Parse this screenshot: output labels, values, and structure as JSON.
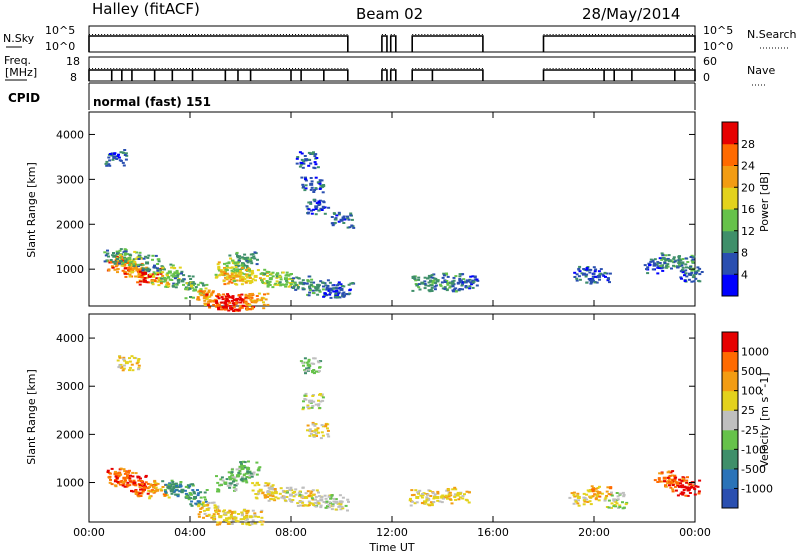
{
  "header": {
    "station": "Halley (fitACF)",
    "beam": "Beam 02",
    "date": "28/May/2014"
  },
  "status_panels": {
    "nsky_label": "N.Sky",
    "nsky_ticks": [
      "10^5",
      "10^0"
    ],
    "nsearch_label": "N.Search",
    "nsearch_ticks": [
      "10^5",
      "10^0"
    ],
    "freq_label_1": "Freq.",
    "freq_label_2": "[MHz]",
    "freq_ticks": [
      "18",
      "8"
    ],
    "nave_label": "Nave",
    "nave_ticks": [
      "60",
      "0"
    ],
    "cpid_label": "CPID",
    "cpid_value": "normal (fast) 151"
  },
  "chart_data": [
    {
      "type": "heatmap",
      "panel": "power",
      "ylabel": "Slant Range [km]",
      "yticks": [
        "1000",
        "2000",
        "3000",
        "4000"
      ],
      "ylim": [
        180,
        4500
      ],
      "xlim": [
        0,
        24
      ],
      "colorbar": {
        "label": "Power [dB]",
        "ticks": [
          "4",
          "8",
          "12",
          "16",
          "20",
          "24",
          "28"
        ],
        "colors": [
          "#0000ff",
          "#2a4fb0",
          "#3f8f6a",
          "#66c24a",
          "#e3d21c",
          "#f39c12",
          "#ff6a00",
          "#e60000"
        ]
      },
      "observations": [
        {
          "time": 1.1,
          "range": 1150,
          "level": 6
        },
        {
          "time": 1.4,
          "range": 1100,
          "level": 5
        },
        {
          "time": 1.7,
          "range": 1000,
          "level": 6
        },
        {
          "time": 2.0,
          "range": 900,
          "level": 5
        },
        {
          "time": 2.4,
          "range": 850,
          "level": 7
        },
        {
          "time": 2.8,
          "range": 800,
          "level": 4
        },
        {
          "time": 1.0,
          "range": 1300,
          "level": 2
        },
        {
          "time": 1.6,
          "range": 1250,
          "level": 3
        },
        {
          "time": 2.3,
          "range": 1150,
          "level": 2
        },
        {
          "time": 3.2,
          "range": 950,
          "level": 3
        },
        {
          "time": 3.7,
          "range": 750,
          "level": 2
        },
        {
          "time": 4.2,
          "range": 550,
          "level": 3
        },
        {
          "time": 4.6,
          "range": 400,
          "level": 5
        },
        {
          "time": 5.0,
          "range": 300,
          "level": 6
        },
        {
          "time": 5.4,
          "range": 260,
          "level": 7
        },
        {
          "time": 5.8,
          "range": 250,
          "level": 7
        },
        {
          "time": 6.2,
          "range": 280,
          "level": 6
        },
        {
          "time": 6.6,
          "range": 300,
          "level": 5
        },
        {
          "time": 5.4,
          "range": 1000,
          "level": 4
        },
        {
          "time": 5.8,
          "range": 1150,
          "level": 3
        },
        {
          "time": 6.2,
          "range": 1250,
          "level": 2
        },
        {
          "time": 5.6,
          "range": 850,
          "level": 5
        },
        {
          "time": 6.0,
          "range": 900,
          "level": 4
        },
        {
          "time": 6.6,
          "range": 850,
          "level": 4
        },
        {
          "time": 7.2,
          "range": 800,
          "level": 3
        },
        {
          "time": 7.8,
          "range": 800,
          "level": 3
        },
        {
          "time": 8.4,
          "range": 700,
          "level": 2
        },
        {
          "time": 9.0,
          "range": 600,
          "level": 2
        },
        {
          "time": 9.6,
          "range": 550,
          "level": 1
        },
        {
          "time": 10.0,
          "range": 560,
          "level": 1
        },
        {
          "time": 8.6,
          "range": 3450,
          "level": 1
        },
        {
          "time": 8.8,
          "range": 2900,
          "level": 1
        },
        {
          "time": 9.0,
          "range": 2400,
          "level": 1
        },
        {
          "time": 10.0,
          "range": 2100,
          "level": 1
        },
        {
          "time": 1.0,
          "range": 3500,
          "level": 1
        },
        {
          "time": 13.2,
          "range": 700,
          "level": 2
        },
        {
          "time": 13.8,
          "range": 750,
          "level": 2
        },
        {
          "time": 14.4,
          "range": 700,
          "level": 2
        },
        {
          "time": 15.0,
          "range": 750,
          "level": 1
        },
        {
          "time": 19.6,
          "range": 900,
          "level": 1
        },
        {
          "time": 20.2,
          "range": 850,
          "level": 1
        },
        {
          "time": 22.4,
          "range": 1100,
          "level": 1
        },
        {
          "time": 23.0,
          "range": 1200,
          "level": 2
        },
        {
          "time": 23.5,
          "range": 1150,
          "level": 2
        },
        {
          "time": 23.8,
          "range": 900,
          "level": 1
        }
      ]
    },
    {
      "type": "heatmap",
      "panel": "velocity",
      "ylabel": "Slant Range [km]",
      "yticks": [
        "1000",
        "2000",
        "3000",
        "4000"
      ],
      "ylim": [
        180,
        4500
      ],
      "xlim": [
        0,
        24
      ],
      "xlabel": "Time UT",
      "xticks": [
        "00:00",
        "04:00",
        "08:00",
        "12:00",
        "16:00",
        "20:00",
        "00:00"
      ],
      "colorbar": {
        "label": "Velocity [m s^-1]",
        "ticks": [
          "1000",
          "500",
          "100",
          "25",
          "-25",
          "-100",
          "-500",
          "-1000"
        ],
        "colors": [
          "#2a4fb0",
          "#2a73b8",
          "#3f8f6a",
          "#66c24a",
          "#bfbfbf",
          "#e3d21c",
          "#f39c12",
          "#ff6a00",
          "#e60000"
        ]
      },
      "observations": [
        {
          "time": 1.1,
          "range": 1150,
          "level": 7
        },
        {
          "time": 1.4,
          "range": 1100,
          "level": 7
        },
        {
          "time": 1.8,
          "range": 1000,
          "level": 8
        },
        {
          "time": 2.2,
          "range": 900,
          "level": 7
        },
        {
          "time": 2.7,
          "range": 850,
          "level": 6
        },
        {
          "time": 3.2,
          "range": 900,
          "level": 2
        },
        {
          "time": 3.7,
          "range": 850,
          "level": 2
        },
        {
          "time": 4.2,
          "range": 700,
          "level": 2
        },
        {
          "time": 4.7,
          "range": 450,
          "level": 5
        },
        {
          "time": 5.2,
          "range": 300,
          "level": 5
        },
        {
          "time": 5.8,
          "range": 270,
          "level": 5
        },
        {
          "time": 6.4,
          "range": 300,
          "level": 5
        },
        {
          "time": 5.4,
          "range": 1000,
          "level": 3
        },
        {
          "time": 5.9,
          "range": 1150,
          "level": 3
        },
        {
          "time": 6.3,
          "range": 1300,
          "level": 3
        },
        {
          "time": 6.8,
          "range": 850,
          "level": 5
        },
        {
          "time": 7.4,
          "range": 800,
          "level": 5
        },
        {
          "time": 8.0,
          "range": 750,
          "level": 4
        },
        {
          "time": 8.6,
          "range": 700,
          "level": 5
        },
        {
          "time": 9.2,
          "range": 650,
          "level": 4
        },
        {
          "time": 9.8,
          "range": 600,
          "level": 4
        },
        {
          "time": 8.8,
          "range": 2700,
          "level": 4
        },
        {
          "time": 8.7,
          "range": 3450,
          "level": 3
        },
        {
          "time": 9.0,
          "range": 2100,
          "level": 5
        },
        {
          "time": 1.5,
          "range": 3500,
          "level": 5
        },
        {
          "time": 13.0,
          "range": 700,
          "level": 5
        },
        {
          "time": 13.8,
          "range": 700,
          "level": 5
        },
        {
          "time": 14.6,
          "range": 750,
          "level": 5
        },
        {
          "time": 19.4,
          "range": 700,
          "level": 5
        },
        {
          "time": 20.2,
          "range": 800,
          "level": 6
        },
        {
          "time": 20.8,
          "range": 650,
          "level": 4
        },
        {
          "time": 22.8,
          "range": 1100,
          "level": 7
        },
        {
          "time": 23.3,
          "range": 1000,
          "level": 7
        },
        {
          "time": 23.7,
          "range": 900,
          "level": 8
        }
      ]
    }
  ],
  "status_series": {
    "nsky_on_segments": [
      [
        0.0,
        10.25
      ],
      [
        11.6,
        11.8
      ],
      [
        11.95,
        12.15
      ],
      [
        12.8,
        15.6
      ],
      [
        18.0,
        24.0
      ]
    ],
    "freq_on_segments": [
      [
        0.0,
        10.25
      ],
      [
        11.6,
        11.8
      ],
      [
        11.95,
        12.15
      ],
      [
        12.8,
        15.6
      ],
      [
        18.0,
        24.0
      ]
    ],
    "freq_dropouts": [
      0.9,
      1.3,
      1.7,
      2.6,
      3.3,
      4.1,
      5.4,
      5.9,
      6.4,
      8.0,
      8.4,
      9.3,
      13.6,
      20.4,
      20.8,
      21.5,
      23.2
    ]
  }
}
